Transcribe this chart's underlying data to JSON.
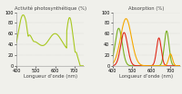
{
  "title_left": "Activité photosynthétique (%)",
  "title_right": "Absorption (%)",
  "xlabel": "Longueur d’onde",
  "xlabel_unit": "(nm)",
  "xlim": [
    400,
    750
  ],
  "ylim": [
    0,
    100
  ],
  "yticks": [
    0,
    20,
    40,
    60,
    80,
    100
  ],
  "xticks": [
    400,
    500,
    600,
    700
  ],
  "bg_color": "#f0f0eb",
  "left_curve_color": "#a8c820",
  "right_green_color": "#7ab020",
  "right_red_color": "#e02818",
  "right_orange_color": "#f5a800"
}
